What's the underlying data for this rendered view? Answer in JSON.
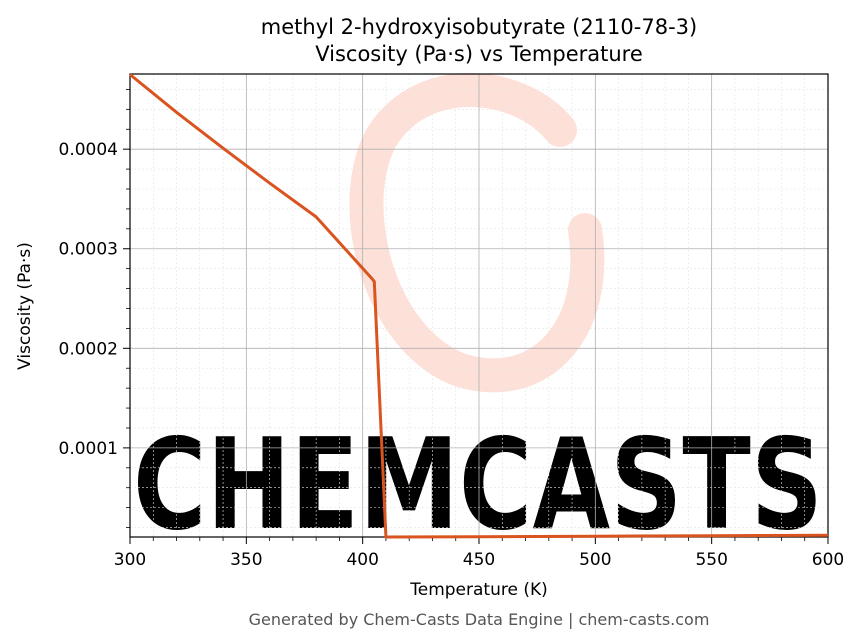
{
  "chart_data": {
    "type": "line",
    "title_line1": "methyl 2-hydroxyisobutyrate (2110-78-3)",
    "title_line2": "Viscosity (Pa·s) vs Temperature",
    "xlabel": "Temperature (K)",
    "ylabel": "Viscosity (Pa·s)",
    "xlim": [
      300,
      600
    ],
    "ylim": [
      1.05e-05,
      0.0004755
    ],
    "x_ticks": [
      300,
      350,
      400,
      450,
      500,
      550,
      600
    ],
    "x_tick_labels": [
      "300",
      "350",
      "400",
      "450",
      "500",
      "550",
      "600"
    ],
    "y_ticks": [
      0.0001,
      0.0002,
      0.0003,
      0.0004
    ],
    "y_tick_labels": [
      "0.0001",
      "0.0002",
      "0.0003",
      "0.0004"
    ],
    "grid": true,
    "series": [
      {
        "color": "#d9541e",
        "points": [
          [
            300,
            0.000475
          ],
          [
            320,
            0.000437
          ],
          [
            340,
            0.000401
          ],
          [
            360,
            0.000366
          ],
          [
            380,
            0.000332
          ],
          [
            404,
            0.00027
          ],
          [
            405,
            0.000267
          ],
          [
            410,
            1.05e-05
          ],
          [
            450,
            1.08e-05
          ],
          [
            500,
            1.13e-05
          ],
          [
            550,
            1.18e-05
          ],
          [
            600,
            1.23e-05
          ]
        ]
      }
    ]
  },
  "watermark": {
    "text": "CHEMCASTS",
    "color": "#fde0d8"
  },
  "footer": "Generated by Chem-Casts Data Engine | chem-casts.com"
}
